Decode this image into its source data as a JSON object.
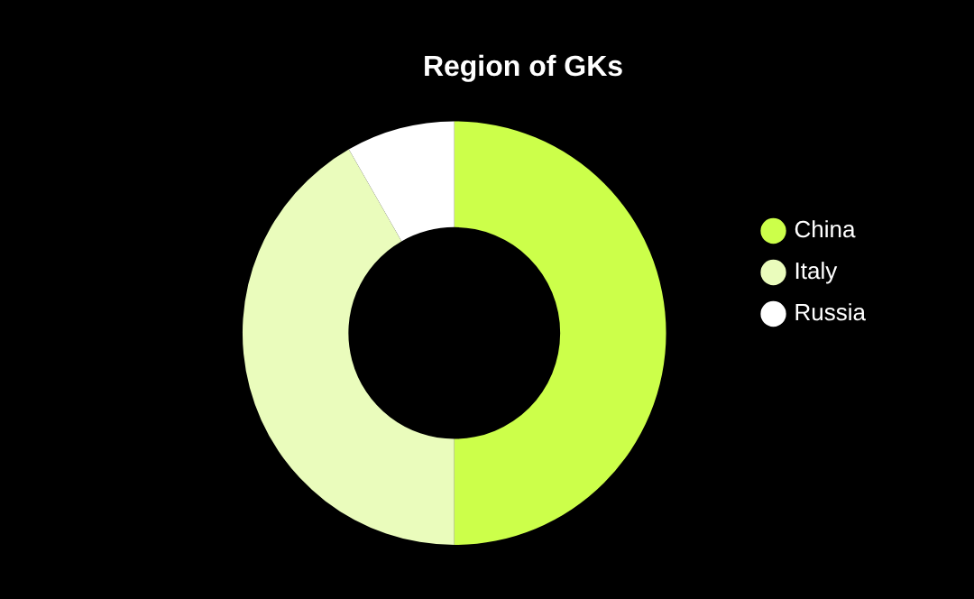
{
  "chart_data": {
    "type": "donut",
    "title": "Region of GKs",
    "categories": [
      "China",
      "Italy",
      "Russia"
    ],
    "values": [
      50,
      41.7,
      8.3
    ],
    "colors": [
      "#ccff4a",
      "#eafcbc",
      "#ffffff"
    ],
    "legend": "right"
  }
}
